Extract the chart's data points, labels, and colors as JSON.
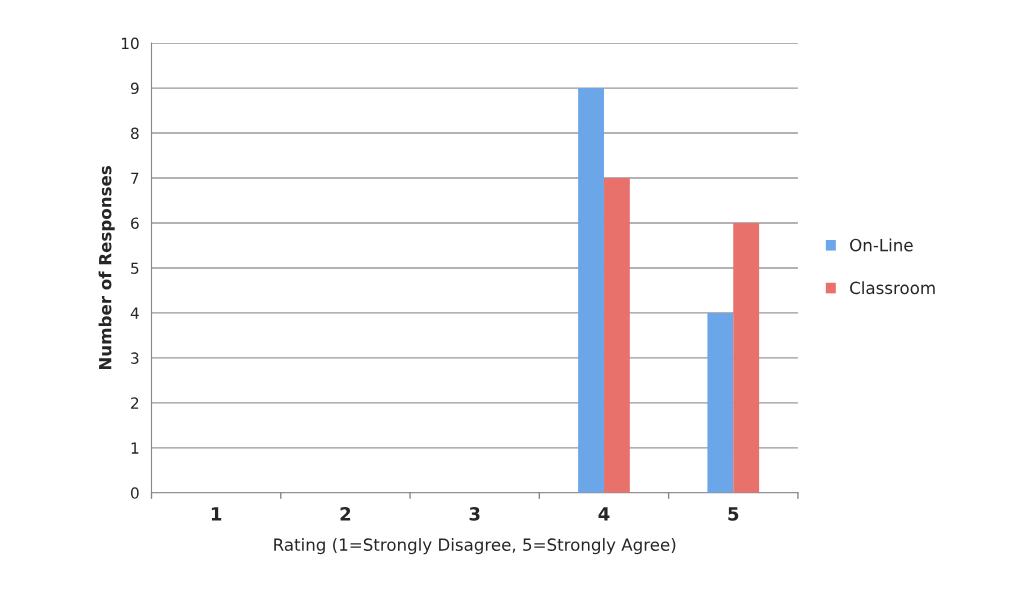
{
  "chart_data": {
    "type": "bar",
    "xlabel": "Rating (1=Strongly Disagree, 5=Strongly Agree)",
    "ylabel": "Number of Responses",
    "categories": [
      "1",
      "2",
      "3",
      "4",
      "5"
    ],
    "series": [
      {
        "name": "On-Line",
        "color": "#6aa6e8",
        "values": [
          0,
          0,
          0,
          9,
          4
        ]
      },
      {
        "name": "Classroom",
        "color": "#e8716b",
        "values": [
          0,
          0,
          0,
          7,
          6
        ]
      }
    ],
    "ylim": [
      0,
      10
    ],
    "yticks": [
      0,
      1,
      2,
      3,
      4,
      5,
      6,
      7,
      8,
      9,
      10
    ],
    "grid": "y",
    "legend": "right"
  }
}
